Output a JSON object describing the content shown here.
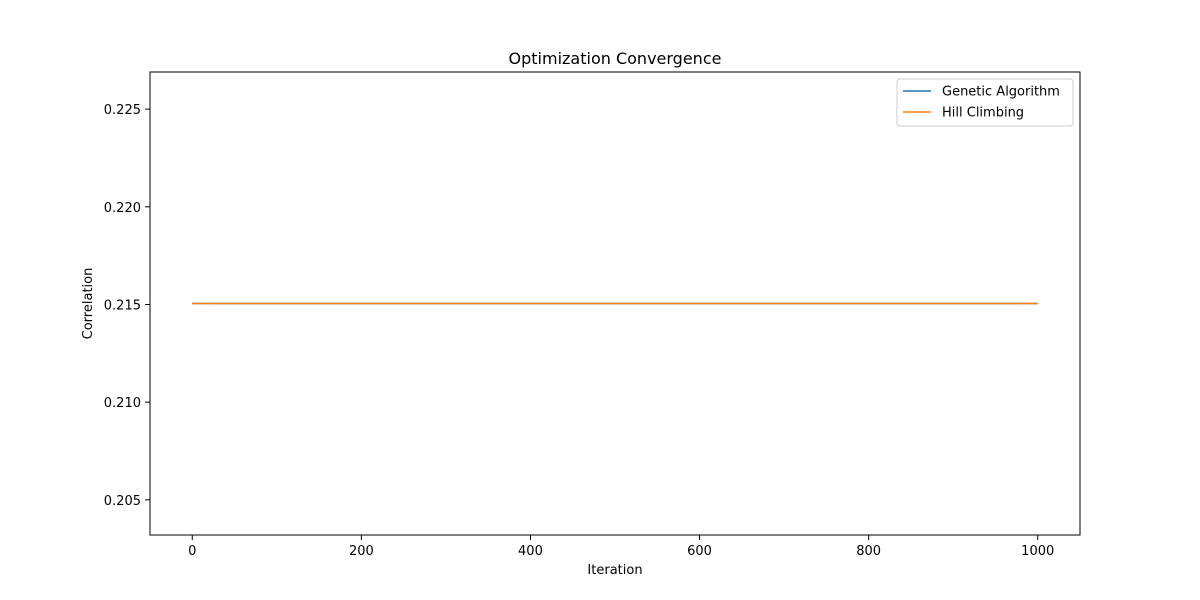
{
  "chart_data": {
    "type": "line",
    "title": "Optimization Convergence",
    "xlabel": "Iteration",
    "ylabel": "Correlation",
    "xlim": [
      -50,
      1050
    ],
    "ylim": [
      0.2032,
      0.2269
    ],
    "xticks": [
      0,
      200,
      400,
      600,
      800,
      1000
    ],
    "xtick_labels": [
      "0",
      "200",
      "400",
      "600",
      "800",
      "1000"
    ],
    "yticks": [
      0.205,
      0.21,
      0.215,
      0.22,
      0.225
    ],
    "ytick_labels": [
      "0.205",
      "0.210",
      "0.215",
      "0.220",
      "0.225"
    ],
    "grid": false,
    "legend_position": "top-right",
    "series": [
      {
        "name": "Genetic Algorithm",
        "color": "#1f77b4",
        "x": [
          0,
          1000
        ],
        "y": [
          0.21505,
          0.21505
        ]
      },
      {
        "name": "Hill Climbing",
        "color": "#ff7f0e",
        "x": [
          0,
          1000
        ],
        "y": [
          0.21505,
          0.21505
        ]
      }
    ]
  }
}
